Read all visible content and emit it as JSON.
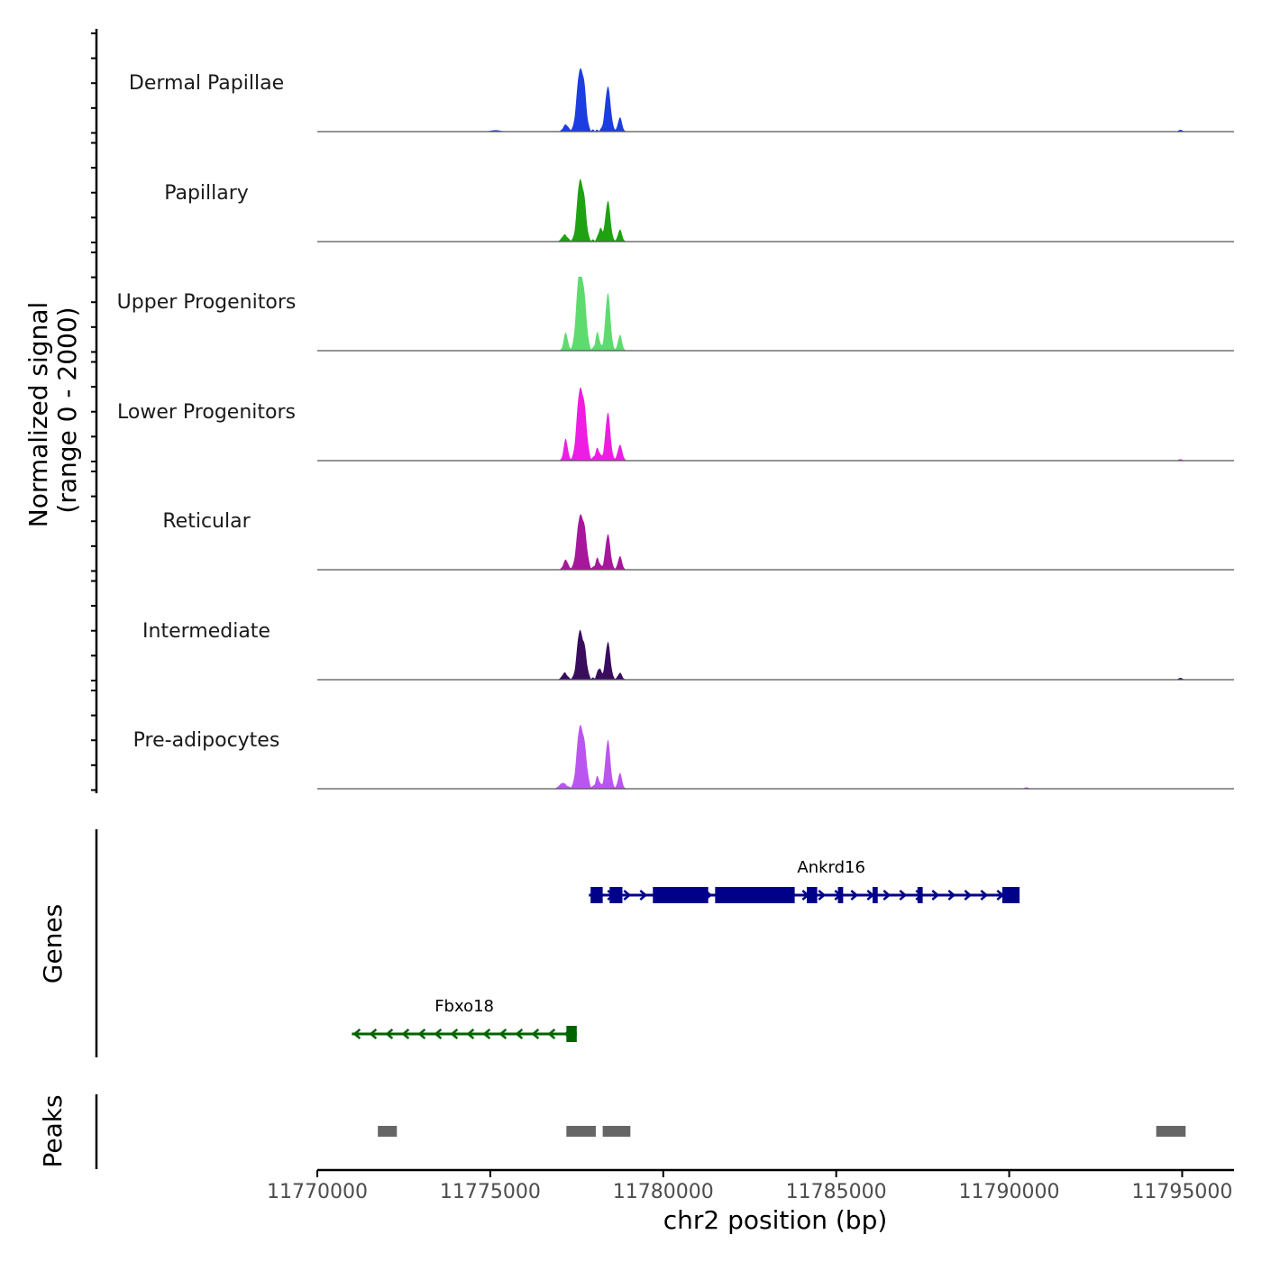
{
  "chart_data": {
    "type": "area",
    "y_axis_title_line1": "Normalized signal",
    "y_axis_title_line2": "(range 0 - 2000)",
    "x_axis_title": "chr2 position (bp)",
    "xlim": [
      11770000,
      11796500
    ],
    "ylim": [
      0,
      2000
    ],
    "x_ticks": [
      11770000,
      11775000,
      11780000,
      11785000,
      11790000,
      11795000
    ],
    "x_tick_labels": [
      "11770000",
      "11775000",
      "11780000",
      "11785000",
      "11790000",
      "11795000"
    ],
    "tracks": [
      {
        "name": "Dermal Papillae",
        "color": "#1c3ee0",
        "peaks": [
          [
            11777580,
            1560,
            120
          ],
          [
            11777720,
            900,
            90
          ],
          [
            11778400,
            1200,
            110
          ],
          [
            11778750,
            380,
            80
          ],
          [
            11777180,
            180,
            100
          ],
          [
            11775150,
            40,
            200
          ],
          [
            11794950,
            50,
            80
          ]
        ]
      },
      {
        "name": "Papillary",
        "color": "#1fa212",
        "peaks": [
          [
            11777580,
            1550,
            110
          ],
          [
            11777720,
            900,
            90
          ],
          [
            11778400,
            1080,
            100
          ],
          [
            11778180,
            320,
            80
          ],
          [
            11778750,
            320,
            80
          ],
          [
            11777150,
            180,
            110
          ]
        ]
      },
      {
        "name": "Upper Progenitors",
        "color": "#5ddb6f",
        "peaks": [
          [
            11777570,
            2000,
            120
          ],
          [
            11777720,
            1150,
            100
          ],
          [
            11778400,
            1540,
            100
          ],
          [
            11778100,
            460,
            80
          ],
          [
            11778750,
            420,
            80
          ],
          [
            11777180,
            480,
            80
          ]
        ]
      },
      {
        "name": "Lower Progenitors",
        "color": "#ee1de4",
        "peaks": [
          [
            11777580,
            1780,
            120
          ],
          [
            11777730,
            1100,
            100
          ],
          [
            11778400,
            1280,
            100
          ],
          [
            11778750,
            420,
            90
          ],
          [
            11777180,
            580,
            80
          ],
          [
            11778100,
            300,
            90
          ],
          [
            11794950,
            40,
            80
          ]
        ]
      },
      {
        "name": "Reticular",
        "color": "#a7179b",
        "peaks": [
          [
            11777580,
            1330,
            120
          ],
          [
            11777730,
            860,
            100
          ],
          [
            11778400,
            940,
            100
          ],
          [
            11778750,
            360,
            80
          ],
          [
            11777180,
            260,
            90
          ],
          [
            11778100,
            280,
            80
          ]
        ]
      },
      {
        "name": "Intermediate",
        "color": "#3a0c5e",
        "peaks": [
          [
            11777580,
            1260,
            110
          ],
          [
            11777730,
            700,
            90
          ],
          [
            11778400,
            1000,
            100
          ],
          [
            11778150,
            280,
            80
          ],
          [
            11778750,
            180,
            80
          ],
          [
            11777150,
            180,
            100
          ],
          [
            11794950,
            50,
            80
          ]
        ]
      },
      {
        "name": "Pre-adipocytes",
        "color": "#bb55f0",
        "peaks": [
          [
            11777580,
            1560,
            120
          ],
          [
            11777730,
            900,
            100
          ],
          [
            11778400,
            1300,
            100
          ],
          [
            11778750,
            420,
            80
          ],
          [
            11778100,
            300,
            80
          ],
          [
            11777100,
            150,
            140
          ],
          [
            11790500,
            40,
            80
          ]
        ]
      }
    ],
    "genes_title": "Genes",
    "genes": [
      {
        "name": "Ankrd16",
        "strand": "+",
        "start": 11777850,
        "end": 11790300,
        "color": "#00008b",
        "exons": [
          [
            11777900,
            11778250
          ],
          [
            11778450,
            11778820
          ],
          [
            11779700,
            11781300
          ],
          [
            11781500,
            11783800
          ],
          [
            11784150,
            11784450
          ],
          [
            11785050,
            11785200
          ],
          [
            11786050,
            11786200
          ],
          [
            11787350,
            11787500
          ],
          [
            11789800,
            11790300
          ]
        ]
      },
      {
        "name": "Fbxo18",
        "strand": "-",
        "start": 11771000,
        "end": 11777500,
        "color": "#006400",
        "exons": [
          [
            11777200,
            11777500
          ]
        ]
      }
    ],
    "peaks_title": "Peaks",
    "peak_color": "#666666",
    "peak_regions": [
      [
        11771750,
        11772300
      ],
      [
        11777200,
        11778050
      ],
      [
        11778250,
        11779050
      ],
      [
        11794250,
        11795100
      ]
    ]
  }
}
